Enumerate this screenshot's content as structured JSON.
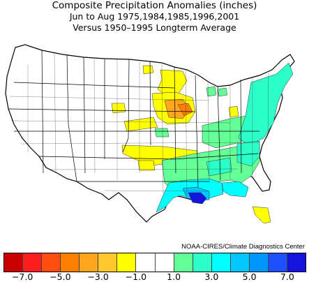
{
  "title": {
    "line1": "Composite Precipitation Anomalies (inches)",
    "line2": "Jun to Aug   1975,1984,1985,1996,2001",
    "line3": "Versus 1950–1995 Longterm Average"
  },
  "credit": "NOAA-CIRES/Climate Diagnostics Center",
  "legend": {
    "colors": [
      "#c80000",
      "#ff1e1e",
      "#ff4f10",
      "#ff7f00",
      "#ffa51e",
      "#ffc82d",
      "#ffff00",
      "#ffffff",
      "#ffffff",
      "#64ff96",
      "#2dffc8",
      "#00ffff",
      "#00c8ff",
      "#0096ff",
      "#1e50ff",
      "#1414dc"
    ],
    "tick_labels": [
      "−7.0",
      "−5.0",
      "−3.0",
      "−1.0",
      "1.0",
      "3.0",
      "5.0",
      "7.0"
    ]
  },
  "map_data": {
    "anomaly_regions": [
      {
        "area": "Northern Plains / Upper Midwest",
        "class": "-1 to -3",
        "color": "#ffff00"
      },
      {
        "area": "Iowa / Northern Missouri",
        "class": "-3 to -5",
        "color": "#ffa51e"
      },
      {
        "area": "Eastern Iowa",
        "class": "-5 to -7",
        "color": "#ff7f00"
      },
      {
        "area": "Kansas / Oklahoma / North Texas",
        "class": "-1 to -3",
        "color": "#ffff00"
      },
      {
        "area": "South Florida",
        "class": "-1 to -3",
        "color": "#ffff00"
      },
      {
        "area": "Southeast / Ohio Valley",
        "class": "1 to 3",
        "color": "#64ff96"
      },
      {
        "area": "Appalachians / Mid-Atlantic / New England",
        "class": "3 to 5",
        "color": "#2dffc8"
      },
      {
        "area": "Gulf Coast",
        "class": "5 to 7",
        "color": "#00ffff"
      },
      {
        "area": "Louisiana coast",
        "class": "7+",
        "color": "#1414dc"
      }
    ]
  }
}
